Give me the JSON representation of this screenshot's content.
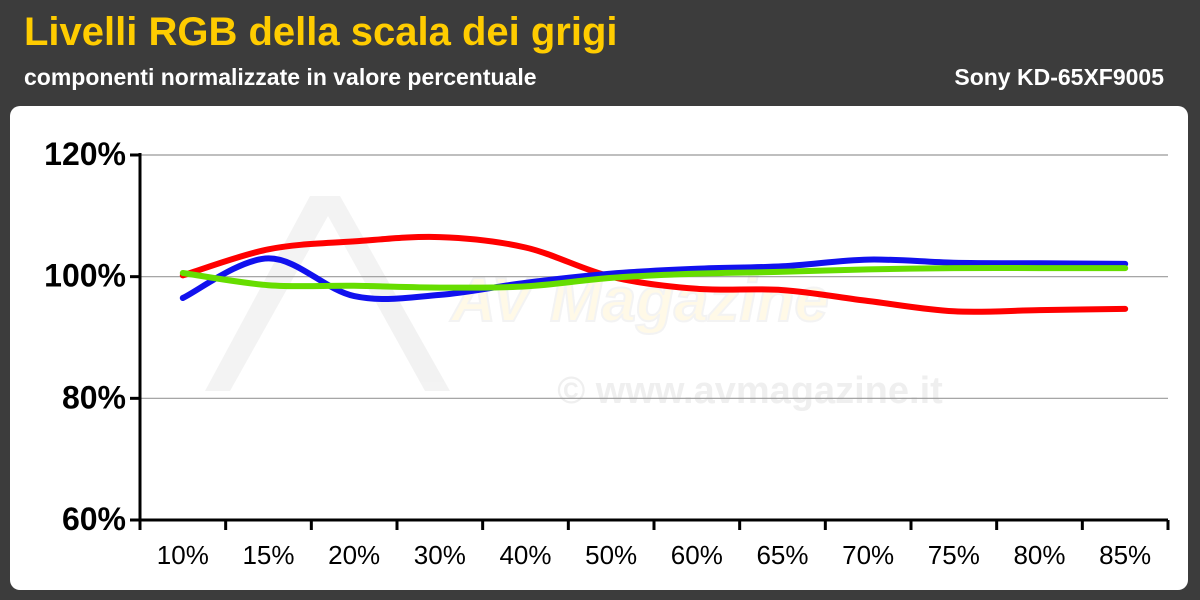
{
  "header": {
    "title": "Livelli RGB della scala dei grigi",
    "subtitle": "componenti normalizzate in valore percentuale",
    "model": "Sony KD-65XF9005"
  },
  "watermark": {
    "logo_text": "AV Magazine",
    "url_text": "© www.avmagazine.it"
  },
  "colors": {
    "title": "#ffcc00",
    "background": "#3c3c3c",
    "red": "#ff0000",
    "green": "#66dd00",
    "blue": "#1111ee"
  },
  "chart_data": {
    "type": "line",
    "categories": [
      "10%",
      "15%",
      "20%",
      "30%",
      "40%",
      "50%",
      "60%",
      "65%",
      "70%",
      "75%",
      "80%",
      "85%"
    ],
    "y_ticks": [
      "60%",
      "80%",
      "100%",
      "120%"
    ],
    "ylim": [
      60,
      120
    ],
    "grid": true,
    "series": [
      {
        "color": "#ff0000",
        "values": [
          100.2,
          104.5,
          105.8,
          106.5,
          104.8,
          100.0,
          98.0,
          97.8,
          96.0,
          94.3,
          94.5,
          94.7
        ]
      },
      {
        "color": "#1111ee",
        "values": [
          96.5,
          103.0,
          96.8,
          97.0,
          99.0,
          100.5,
          101.3,
          101.7,
          102.8,
          102.3,
          102.2,
          102.1
        ]
      },
      {
        "color": "#66dd00",
        "values": [
          100.6,
          98.6,
          98.5,
          98.2,
          98.4,
          99.8,
          100.5,
          100.8,
          101.2,
          101.4,
          101.4,
          101.4
        ]
      }
    ]
  }
}
